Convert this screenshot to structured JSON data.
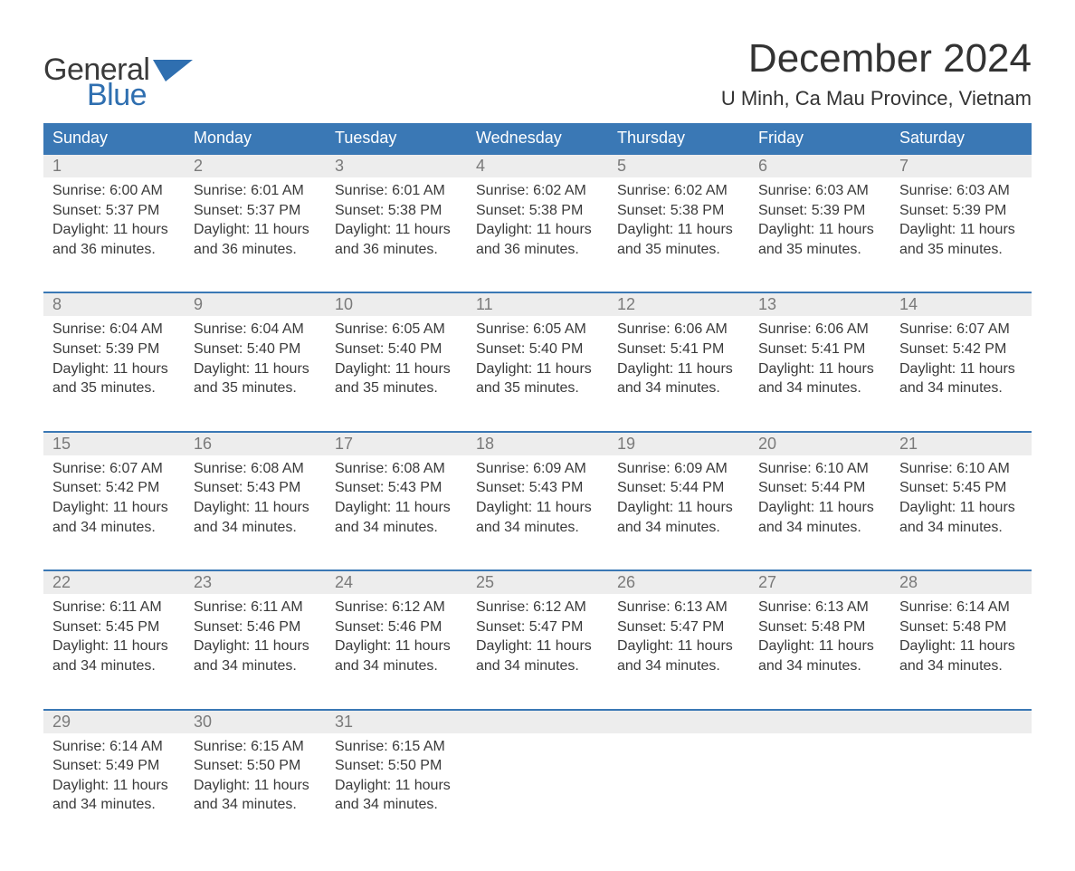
{
  "logo": {
    "text_general": "General",
    "text_blue": "Blue",
    "flag_color": "#2f6fb0"
  },
  "header": {
    "title": "December 2024",
    "location": "U Minh, Ca Mau Province, Vietnam",
    "title_fontsize": 44,
    "location_fontsize": 22
  },
  "colors": {
    "header_bg": "#3a78b5",
    "header_text": "#ffffff",
    "daynum_bg": "#ededed",
    "daynum_text": "#7a7a7a",
    "body_text": "#3a3a3a",
    "week_border": "#3a78b5",
    "page_bg": "#ffffff",
    "logo_blue": "#2f6fb0",
    "logo_dark": "#3a3a3a"
  },
  "layout": {
    "columns": 7,
    "cell_fontsize": 16,
    "head_fontsize": 18
  },
  "day_names": [
    "Sunday",
    "Monday",
    "Tuesday",
    "Wednesday",
    "Thursday",
    "Friday",
    "Saturday"
  ],
  "weeks": [
    {
      "nums": [
        "1",
        "2",
        "3",
        "4",
        "5",
        "6",
        "7"
      ],
      "cells": [
        {
          "sunrise": "Sunrise: 6:00 AM",
          "sunset": "Sunset: 5:37 PM",
          "dl1": "Daylight: 11 hours",
          "dl2": "and 36 minutes."
        },
        {
          "sunrise": "Sunrise: 6:01 AM",
          "sunset": "Sunset: 5:37 PM",
          "dl1": "Daylight: 11 hours",
          "dl2": "and 36 minutes."
        },
        {
          "sunrise": "Sunrise: 6:01 AM",
          "sunset": "Sunset: 5:38 PM",
          "dl1": "Daylight: 11 hours",
          "dl2": "and 36 minutes."
        },
        {
          "sunrise": "Sunrise: 6:02 AM",
          "sunset": "Sunset: 5:38 PM",
          "dl1": "Daylight: 11 hours",
          "dl2": "and 36 minutes."
        },
        {
          "sunrise": "Sunrise: 6:02 AM",
          "sunset": "Sunset: 5:38 PM",
          "dl1": "Daylight: 11 hours",
          "dl2": "and 35 minutes."
        },
        {
          "sunrise": "Sunrise: 6:03 AM",
          "sunset": "Sunset: 5:39 PM",
          "dl1": "Daylight: 11 hours",
          "dl2": "and 35 minutes."
        },
        {
          "sunrise": "Sunrise: 6:03 AM",
          "sunset": "Sunset: 5:39 PM",
          "dl1": "Daylight: 11 hours",
          "dl2": "and 35 minutes."
        }
      ]
    },
    {
      "nums": [
        "8",
        "9",
        "10",
        "11",
        "12",
        "13",
        "14"
      ],
      "cells": [
        {
          "sunrise": "Sunrise: 6:04 AM",
          "sunset": "Sunset: 5:39 PM",
          "dl1": "Daylight: 11 hours",
          "dl2": "and 35 minutes."
        },
        {
          "sunrise": "Sunrise: 6:04 AM",
          "sunset": "Sunset: 5:40 PM",
          "dl1": "Daylight: 11 hours",
          "dl2": "and 35 minutes."
        },
        {
          "sunrise": "Sunrise: 6:05 AM",
          "sunset": "Sunset: 5:40 PM",
          "dl1": "Daylight: 11 hours",
          "dl2": "and 35 minutes."
        },
        {
          "sunrise": "Sunrise: 6:05 AM",
          "sunset": "Sunset: 5:40 PM",
          "dl1": "Daylight: 11 hours",
          "dl2": "and 35 minutes."
        },
        {
          "sunrise": "Sunrise: 6:06 AM",
          "sunset": "Sunset: 5:41 PM",
          "dl1": "Daylight: 11 hours",
          "dl2": "and 34 minutes."
        },
        {
          "sunrise": "Sunrise: 6:06 AM",
          "sunset": "Sunset: 5:41 PM",
          "dl1": "Daylight: 11 hours",
          "dl2": "and 34 minutes."
        },
        {
          "sunrise": "Sunrise: 6:07 AM",
          "sunset": "Sunset: 5:42 PM",
          "dl1": "Daylight: 11 hours",
          "dl2": "and 34 minutes."
        }
      ]
    },
    {
      "nums": [
        "15",
        "16",
        "17",
        "18",
        "19",
        "20",
        "21"
      ],
      "cells": [
        {
          "sunrise": "Sunrise: 6:07 AM",
          "sunset": "Sunset: 5:42 PM",
          "dl1": "Daylight: 11 hours",
          "dl2": "and 34 minutes."
        },
        {
          "sunrise": "Sunrise: 6:08 AM",
          "sunset": "Sunset: 5:43 PM",
          "dl1": "Daylight: 11 hours",
          "dl2": "and 34 minutes."
        },
        {
          "sunrise": "Sunrise: 6:08 AM",
          "sunset": "Sunset: 5:43 PM",
          "dl1": "Daylight: 11 hours",
          "dl2": "and 34 minutes."
        },
        {
          "sunrise": "Sunrise: 6:09 AM",
          "sunset": "Sunset: 5:43 PM",
          "dl1": "Daylight: 11 hours",
          "dl2": "and 34 minutes."
        },
        {
          "sunrise": "Sunrise: 6:09 AM",
          "sunset": "Sunset: 5:44 PM",
          "dl1": "Daylight: 11 hours",
          "dl2": "and 34 minutes."
        },
        {
          "sunrise": "Sunrise: 6:10 AM",
          "sunset": "Sunset: 5:44 PM",
          "dl1": "Daylight: 11 hours",
          "dl2": "and 34 minutes."
        },
        {
          "sunrise": "Sunrise: 6:10 AM",
          "sunset": "Sunset: 5:45 PM",
          "dl1": "Daylight: 11 hours",
          "dl2": "and 34 minutes."
        }
      ]
    },
    {
      "nums": [
        "22",
        "23",
        "24",
        "25",
        "26",
        "27",
        "28"
      ],
      "cells": [
        {
          "sunrise": "Sunrise: 6:11 AM",
          "sunset": "Sunset: 5:45 PM",
          "dl1": "Daylight: 11 hours",
          "dl2": "and 34 minutes."
        },
        {
          "sunrise": "Sunrise: 6:11 AM",
          "sunset": "Sunset: 5:46 PM",
          "dl1": "Daylight: 11 hours",
          "dl2": "and 34 minutes."
        },
        {
          "sunrise": "Sunrise: 6:12 AM",
          "sunset": "Sunset: 5:46 PM",
          "dl1": "Daylight: 11 hours",
          "dl2": "and 34 minutes."
        },
        {
          "sunrise": "Sunrise: 6:12 AM",
          "sunset": "Sunset: 5:47 PM",
          "dl1": "Daylight: 11 hours",
          "dl2": "and 34 minutes."
        },
        {
          "sunrise": "Sunrise: 6:13 AM",
          "sunset": "Sunset: 5:47 PM",
          "dl1": "Daylight: 11 hours",
          "dl2": "and 34 minutes."
        },
        {
          "sunrise": "Sunrise: 6:13 AM",
          "sunset": "Sunset: 5:48 PM",
          "dl1": "Daylight: 11 hours",
          "dl2": "and 34 minutes."
        },
        {
          "sunrise": "Sunrise: 6:14 AM",
          "sunset": "Sunset: 5:48 PM",
          "dl1": "Daylight: 11 hours",
          "dl2": "and 34 minutes."
        }
      ]
    },
    {
      "nums": [
        "29",
        "30",
        "31",
        "",
        "",
        "",
        ""
      ],
      "cells": [
        {
          "sunrise": "Sunrise: 6:14 AM",
          "sunset": "Sunset: 5:49 PM",
          "dl1": "Daylight: 11 hours",
          "dl2": "and 34 minutes."
        },
        {
          "sunrise": "Sunrise: 6:15 AM",
          "sunset": "Sunset: 5:50 PM",
          "dl1": "Daylight: 11 hours",
          "dl2": "and 34 minutes."
        },
        {
          "sunrise": "Sunrise: 6:15 AM",
          "sunset": "Sunset: 5:50 PM",
          "dl1": "Daylight: 11 hours",
          "dl2": "and 34 minutes."
        },
        {
          "sunrise": "",
          "sunset": "",
          "dl1": "",
          "dl2": ""
        },
        {
          "sunrise": "",
          "sunset": "",
          "dl1": "",
          "dl2": ""
        },
        {
          "sunrise": "",
          "sunset": "",
          "dl1": "",
          "dl2": ""
        },
        {
          "sunrise": "",
          "sunset": "",
          "dl1": "",
          "dl2": ""
        }
      ]
    }
  ]
}
